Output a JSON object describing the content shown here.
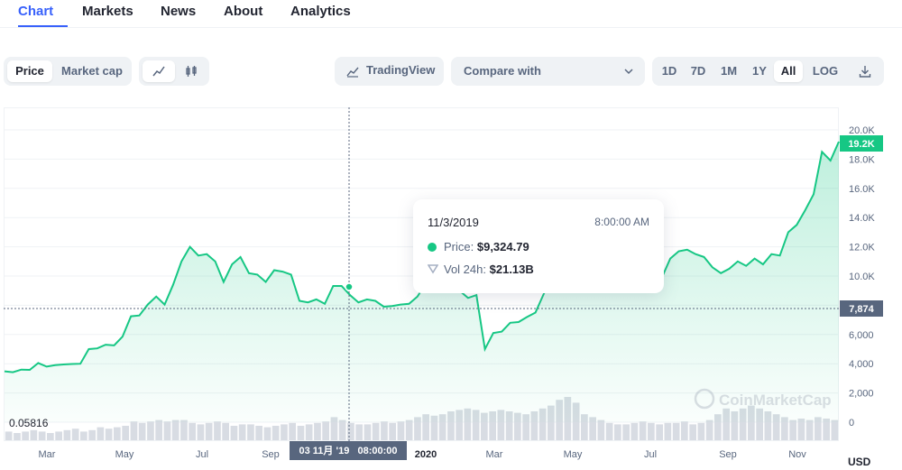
{
  "tabs": [
    {
      "label": "Chart",
      "active": true
    },
    {
      "label": "Markets"
    },
    {
      "label": "News"
    },
    {
      "label": "About"
    },
    {
      "label": "Analytics"
    }
  ],
  "toolbar": {
    "price_label": "Price",
    "marketcap_label": "Market cap",
    "tradingview_label": "TradingView",
    "compare_label": "Compare with",
    "ranges": [
      "1D",
      "7D",
      "1M",
      "1Y",
      "All",
      "LOG"
    ],
    "active_range": "All"
  },
  "tooltip": {
    "date": "11/3/2019",
    "time": "8:00:00 AM",
    "price_label": "Price:",
    "price_value": "$9,324.79",
    "vol_label": "Vol 24h:",
    "vol_value": "$21.13B"
  },
  "crosshair_label": "03 11月 '19   08:00:00",
  "watermark": "CoinMarketCap",
  "colors": {
    "accent": "#3861fb",
    "line": "#16c784",
    "axis_text": "#58667e"
  },
  "chart_data": {
    "type": "area",
    "y_ticks": [
      "20.0K",
      "18.0K",
      "16.0K",
      "14.0K",
      "12.0K",
      "10.0K",
      "8,000",
      "6,000",
      "4,000",
      "2,000",
      "0"
    ],
    "y_range": [
      0,
      20000
    ],
    "x_ticks": [
      "Mar",
      "May",
      "Jul",
      "Sep",
      "2020",
      "Mar",
      "May",
      "Jul",
      "Sep",
      "Nov"
    ],
    "y_unit": "USD",
    "current_price_label": "19.2K",
    "crosshair_value_label": "7,874",
    "volume_min_label": "0.05816",
    "price_series": [
      3480,
      3420,
      3600,
      3580,
      4050,
      3800,
      3900,
      3950,
      3980,
      4000,
      5000,
      5050,
      5300,
      5250,
      5850,
      7250,
      7300,
      8050,
      8600,
      8050,
      9400,
      11000,
      12000,
      11400,
      11500,
      11000,
      9600,
      10800,
      11300,
      10200,
      10100,
      9600,
      10400,
      10300,
      10100,
      8300,
      8200,
      8400,
      8100,
      9324,
      9324,
      8700,
      8200,
      8400,
      8300,
      7900,
      7950,
      8050,
      8100,
      8600,
      9500,
      9400,
      9100,
      9100,
      9000,
      8500,
      8700,
      5000,
      6100,
      6200,
      6800,
      6850,
      7200,
      7500,
      8800,
      9800,
      9900,
      9700,
      9600,
      9200,
      9300,
      9250,
      9200,
      9400,
      9600,
      9000,
      9300,
      9350,
      9900,
      11200,
      11700,
      11800,
      11500,
      11300,
      10600,
      10200,
      10500,
      11000,
      10700,
      11200,
      10800,
      11500,
      11400,
      13000,
      13500,
      14500,
      15600,
      18500,
      17900,
      19200
    ],
    "volume_series": [
      6,
      5,
      6,
      7,
      6,
      5,
      6,
      7,
      8,
      6,
      7,
      9,
      8,
      9,
      10,
      13,
      12,
      13,
      14,
      13,
      14,
      14,
      12,
      11,
      12,
      13,
      12,
      10,
      11,
      11,
      10,
      9,
      10,
      11,
      12,
      10,
      11,
      12,
      13,
      16,
      14,
      12,
      11,
      11,
      12,
      13,
      12,
      13,
      14,
      16,
      18,
      17,
      18,
      20,
      21,
      22,
      21,
      19,
      20,
      21,
      20,
      19,
      18,
      20,
      22,
      24,
      28,
      30,
      26,
      18,
      16,
      14,
      12,
      11,
      11,
      12,
      13,
      12,
      11,
      12,
      12,
      13,
      11,
      12,
      14,
      18,
      22,
      20,
      22,
      24,
      22,
      20,
      18,
      16,
      14,
      15,
      14,
      16,
      15,
      14
    ]
  }
}
